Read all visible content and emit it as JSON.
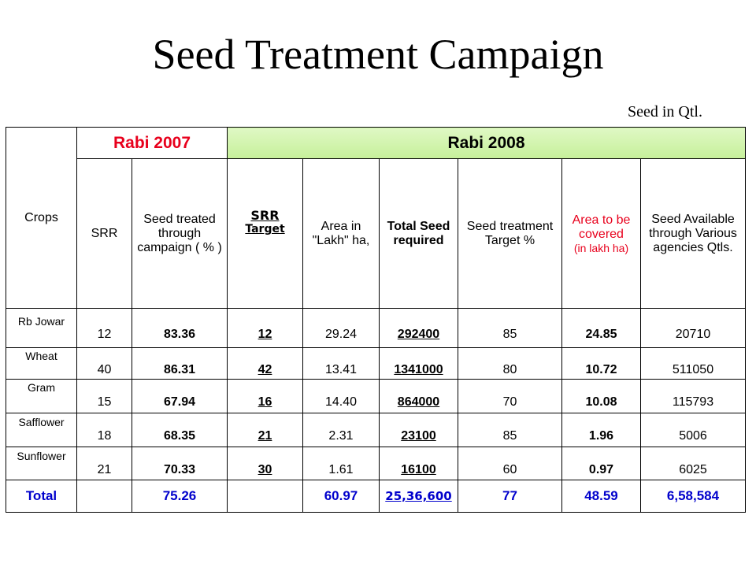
{
  "title": "Seed Treatment Campaign",
  "unit_note": "Seed in Qtl.",
  "header": {
    "crops": "Crops",
    "rabi2007": "Rabi  2007",
    "rabi2008": "Rabi  2008",
    "srr": "SRR",
    "seed_treated": "Seed treated through campaign ( % )",
    "srr_target_1": "SRR",
    "srr_target_2": "Target",
    "area": "Area in \"Lakh\" ha,",
    "total_seed": "Total Seed required",
    "treatment_target": "Seed treatment Target   %",
    "area_cov": "Area to be covered",
    "area_cov_unit": "(in lakh ha)",
    "seed_avail": "Seed Available through Various agencies Qtls."
  },
  "rows": [
    {
      "crop": "Rb Jowar",
      "srr": "12",
      "treated": "83.36",
      "srr_target": "12",
      "area": "29.24",
      "total_seed": "292400",
      "target": "85",
      "area_cov": "24.85",
      "available": "20710"
    },
    {
      "crop": "Wheat",
      "srr": "40",
      "treated": "86.31",
      "srr_target": "42",
      "area": "13.41",
      "total_seed": "1341000",
      "target": "80",
      "area_cov": "10.72",
      "available": "511050"
    },
    {
      "crop": "Gram",
      "srr": "15",
      "treated": "67.94",
      "srr_target": "16",
      "area": "14.40",
      "total_seed": "864000",
      "target": "70",
      "area_cov": "10.08",
      "available": "115793"
    },
    {
      "crop": "Safflower",
      "srr": "18",
      "treated": "68.35",
      "srr_target": "21",
      "area": "2.31",
      "total_seed": "23100",
      "target": "85",
      "area_cov": "1.96",
      "available": "5006"
    },
    {
      "crop": "Sunflower",
      "srr": "21",
      "treated": "70.33",
      "srr_target": "30",
      "area": "1.61",
      "total_seed": "16100",
      "target": "60",
      "area_cov": "0.97",
      "available": "6025"
    }
  ],
  "total": {
    "label": "Total",
    "treated": "75.26",
    "area": "60.97",
    "total_seed": "25,36,600",
    "target": "77",
    "area_cov": "48.59",
    "available": "6,58,584"
  }
}
